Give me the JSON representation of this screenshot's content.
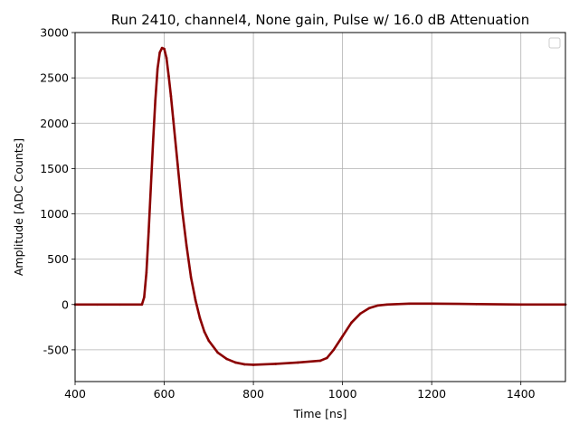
{
  "chart_data": {
    "type": "line",
    "title": "Run 2410, channel4, None gain, Pulse w/ 16.0 dB Attenuation",
    "xlabel": "Time [ns]",
    "ylabel": "Amplitude [ADC Counts]",
    "xlim": [
      400,
      1500
    ],
    "ylim": [
      -850,
      3000
    ],
    "xticks": [
      400,
      600,
      800,
      1000,
      1200,
      1400
    ],
    "yticks": [
      -500,
      0,
      500,
      1000,
      1500,
      2000,
      2500,
      3000
    ],
    "grid": true,
    "legend": {
      "position": "top-right",
      "entries": []
    },
    "series": [
      {
        "color": "#8b0000",
        "x": [
          400,
          450,
          500,
          550,
          555,
          560,
          565,
          570,
          575,
          580,
          585,
          590,
          595,
          600,
          605,
          610,
          615,
          620,
          630,
          640,
          650,
          660,
          670,
          680,
          690,
          700,
          720,
          740,
          760,
          780,
          800,
          850,
          900,
          950,
          965,
          980,
          1000,
          1020,
          1040,
          1060,
          1080,
          1100,
          1150,
          1200,
          1300,
          1400,
          1500
        ],
        "y": [
          0,
          0,
          0,
          0,
          80,
          350,
          800,
          1300,
          1800,
          2250,
          2600,
          2780,
          2830,
          2820,
          2720,
          2520,
          2300,
          2050,
          1550,
          1050,
          650,
          300,
          50,
          -150,
          -300,
          -400,
          -530,
          -600,
          -640,
          -660,
          -665,
          -655,
          -640,
          -620,
          -590,
          -500,
          -350,
          -200,
          -100,
          -40,
          -10,
          0,
          10,
          10,
          5,
          0,
          0
        ]
      }
    ]
  }
}
